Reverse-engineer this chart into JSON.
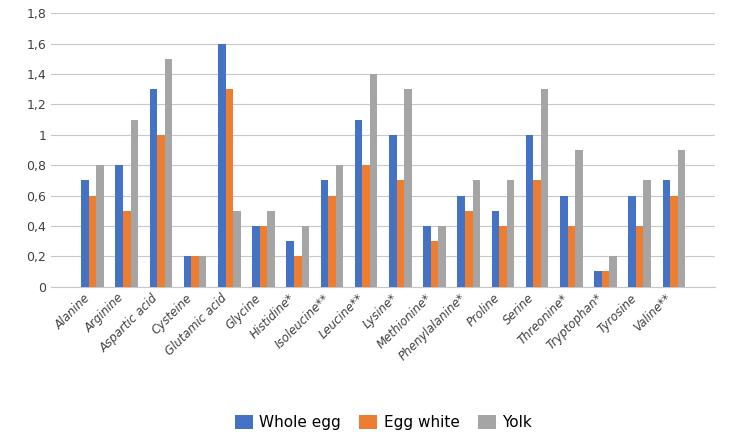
{
  "categories": [
    "Alanine",
    "Arginine",
    "Aspartic acid",
    "Cysteine",
    "Glutamic acid",
    "Glycine",
    "Histidine*",
    "Isoleucine**",
    "Leucine**",
    "Lysine*",
    "Methionine*",
    "Phenylalanine*",
    "Proline",
    "Serine",
    "Threonine*",
    "Tryptophan*",
    "Tyrosine",
    "Valine**"
  ],
  "whole_egg": [
    0.7,
    0.8,
    1.3,
    0.2,
    1.6,
    0.4,
    0.3,
    0.7,
    1.1,
    1.0,
    0.4,
    0.6,
    0.5,
    1.0,
    0.6,
    0.1,
    0.6,
    0.7
  ],
  "egg_white": [
    0.6,
    0.5,
    1.0,
    0.2,
    1.3,
    0.4,
    0.2,
    0.6,
    0.8,
    0.7,
    0.3,
    0.5,
    0.4,
    0.7,
    0.4,
    0.1,
    0.4,
    0.6
  ],
  "yolk": [
    0.8,
    1.1,
    1.5,
    0.2,
    0.5,
    0.5,
    0.4,
    0.8,
    1.4,
    1.3,
    0.4,
    0.7,
    0.7,
    1.3,
    0.9,
    0.2,
    0.7,
    0.9
  ],
  "whole_egg_color": "#4472C4",
  "egg_white_color": "#ED7D31",
  "yolk_color": "#A5A5A5",
  "ylim": [
    0,
    1.8
  ],
  "yticks": [
    0,
    0.2,
    0.4,
    0.6,
    0.8,
    1.0,
    1.2,
    1.4,
    1.6,
    1.8
  ],
  "ytick_labels": [
    "0",
    "0,2",
    "0,4",
    "0,6",
    "0,8",
    "1",
    "1,2",
    "1,4",
    "1,6",
    "1,8"
  ],
  "legend_labels": [
    "Whole egg",
    "Egg white",
    "Yolk"
  ],
  "bar_width": 0.22,
  "background_color": "#FFFFFF",
  "grid_color": "#C8C8C8"
}
